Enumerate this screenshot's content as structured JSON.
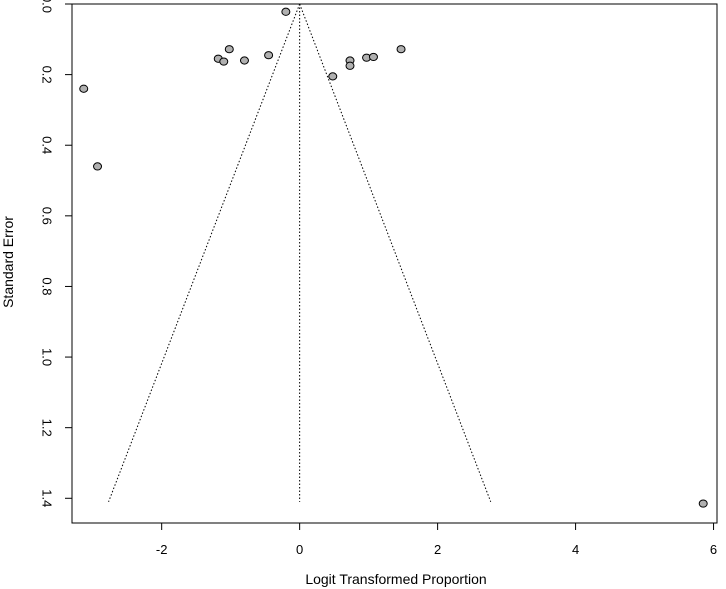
{
  "chart_data": {
    "type": "scatter",
    "title": "",
    "xlabel": "Logit Transformed Proportion",
    "ylabel": "Standard Error",
    "xlim": [
      -3.3,
      6.05
    ],
    "ylim": [
      0,
      1.47
    ],
    "y_reversed": true,
    "x_ticks": [
      -2,
      0,
      2,
      4,
      6
    ],
    "x_tick_labels": [
      "-2",
      "0",
      "2",
      "4",
      "6"
    ],
    "y_ticks": [
      0.0,
      0.2,
      0.4,
      0.6,
      0.8,
      1.0,
      1.2,
      1.4
    ],
    "y_tick_labels": [
      "0.0",
      "0.2",
      "0.4",
      "0.6",
      "0.8",
      "1.0",
      "1.2",
      "1.4"
    ],
    "grid": false,
    "legend": "none",
    "point_color": "#b0b0b0",
    "funnel": {
      "center": 0,
      "se_max": 1.41,
      "left_x_at_se_max": -2.77,
      "right_x_at_se_max": 2.77,
      "line_style": "dotted"
    },
    "points": [
      {
        "x": -3.13,
        "y": 0.24
      },
      {
        "x": -2.93,
        "y": 0.46
      },
      {
        "x": -1.18,
        "y": 0.155
      },
      {
        "x": -1.1,
        "y": 0.163
      },
      {
        "x": -1.02,
        "y": 0.128
      },
      {
        "x": -0.8,
        "y": 0.16
      },
      {
        "x": -0.45,
        "y": 0.145
      },
      {
        "x": -0.2,
        "y": 0.022
      },
      {
        "x": 0.48,
        "y": 0.205
      },
      {
        "x": 0.73,
        "y": 0.16
      },
      {
        "x": 0.73,
        "y": 0.175
      },
      {
        "x": 0.97,
        "y": 0.152
      },
      {
        "x": 1.07,
        "y": 0.15
      },
      {
        "x": 1.47,
        "y": 0.128
      },
      {
        "x": 5.85,
        "y": 1.415
      }
    ]
  }
}
